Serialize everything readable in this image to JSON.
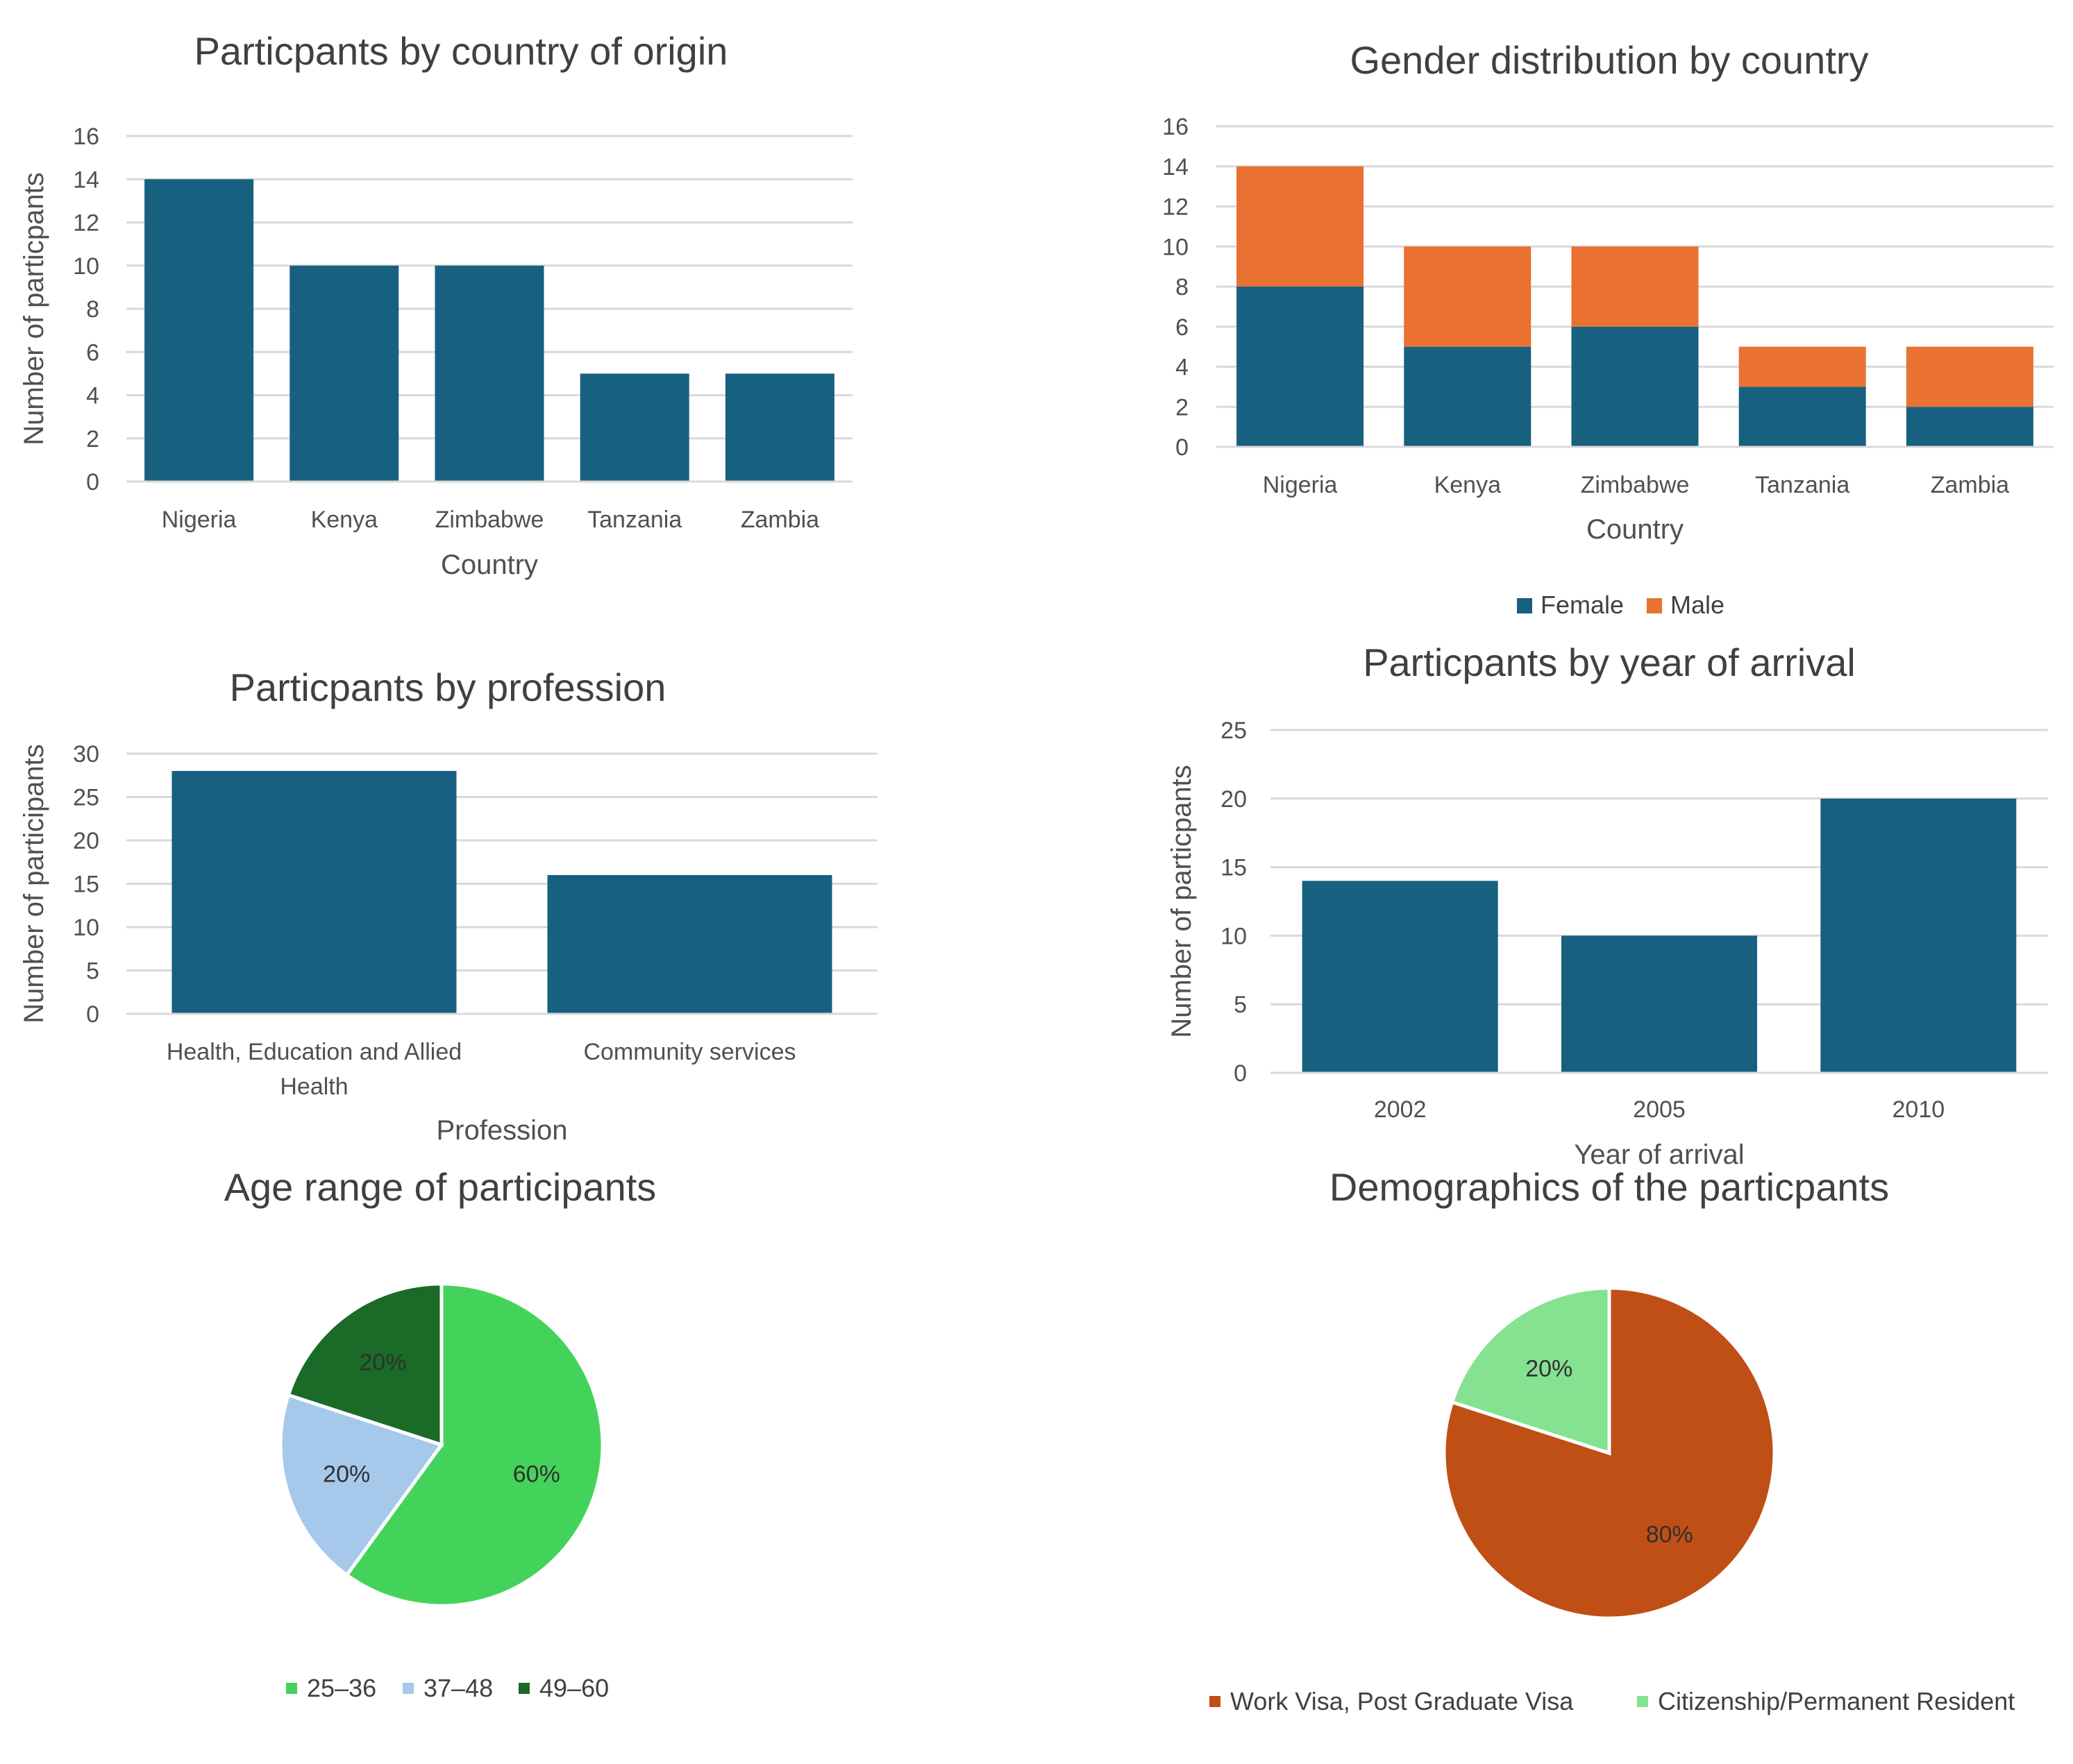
{
  "chart_data": [
    {
      "type": "bar",
      "title": "Particpants by country of origin",
      "xlabel": "Country",
      "ylabel": "Number of particpants",
      "categories": [
        "Nigeria",
        "Kenya",
        "Zimbabwe",
        "Tanzania",
        "Zambia"
      ],
      "values": [
        14,
        10,
        10,
        5,
        5
      ],
      "ylim": [
        0,
        16
      ],
      "yticks": [
        "0",
        "2",
        "4",
        "6",
        "8",
        "10",
        "12",
        "14",
        "16"
      ],
      "grid": true,
      "color": "#17607f"
    },
    {
      "type": "bar",
      "stacked": true,
      "title": "Gender distribution by country",
      "xlabel": "Country",
      "ylabel": "",
      "categories": [
        "Nigeria",
        "Kenya",
        "Zimbabwe",
        "Tanzania",
        "Zambia"
      ],
      "series": [
        {
          "name": "Female",
          "values": [
            8,
            5,
            6,
            3,
            2
          ],
          "color": "#17607f"
        },
        {
          "name": "Male",
          "values": [
            6,
            5,
            4,
            2,
            3
          ],
          "color": "#e97132"
        }
      ],
      "ylim": [
        0,
        16
      ],
      "yticks": [
        "0",
        "2",
        "4",
        "6",
        "8",
        "10",
        "12",
        "14",
        "16"
      ],
      "grid": true,
      "legend": "bottom"
    },
    {
      "type": "bar",
      "title": "Particpants by profession",
      "xlabel": "Profession",
      "ylabel": "Number of participants",
      "categories": [
        "Health, Education and Allied Health",
        "Community services"
      ],
      "category_lines": [
        [
          "Health, Education and Allied",
          "Health"
        ],
        [
          "Community services"
        ]
      ],
      "values": [
        28,
        16
      ],
      "ylim": [
        0,
        30
      ],
      "yticks": [
        "0",
        "5",
        "10",
        "15",
        "20",
        "25",
        "30"
      ],
      "grid": true,
      "color": "#17607f"
    },
    {
      "type": "bar",
      "title": "Particpants by year of arrival",
      "xlabel": "Year of arrival",
      "ylabel": "Number of particpants",
      "categories": [
        "2002",
        "2005",
        "2010"
      ],
      "values": [
        14,
        10,
        20
      ],
      "ylim": [
        0,
        25
      ],
      "yticks": [
        "0",
        "5",
        "10",
        "15",
        "20",
        "25"
      ],
      "grid": true,
      "color": "#17607f"
    },
    {
      "type": "pie",
      "title": "Age range of participants",
      "labels": [
        "25–36",
        "37–48",
        "49–60"
      ],
      "values": [
        60,
        20,
        20
      ],
      "value_labels": [
        "60%",
        "20%",
        "20%"
      ],
      "colors": [
        "#44d35a",
        "#a6c8ea",
        "#1a6b27"
      ],
      "legend": "bottom"
    },
    {
      "type": "pie",
      "title": "Demographics of the particpants",
      "labels": [
        "Work Visa, Post Graduate Visa",
        "Citizenship/Permanent Resident"
      ],
      "values": [
        80,
        20
      ],
      "value_labels": [
        "80%",
        "20%"
      ],
      "colors": [
        "#c04f15",
        "#84e291"
      ],
      "legend": "bottom"
    }
  ]
}
